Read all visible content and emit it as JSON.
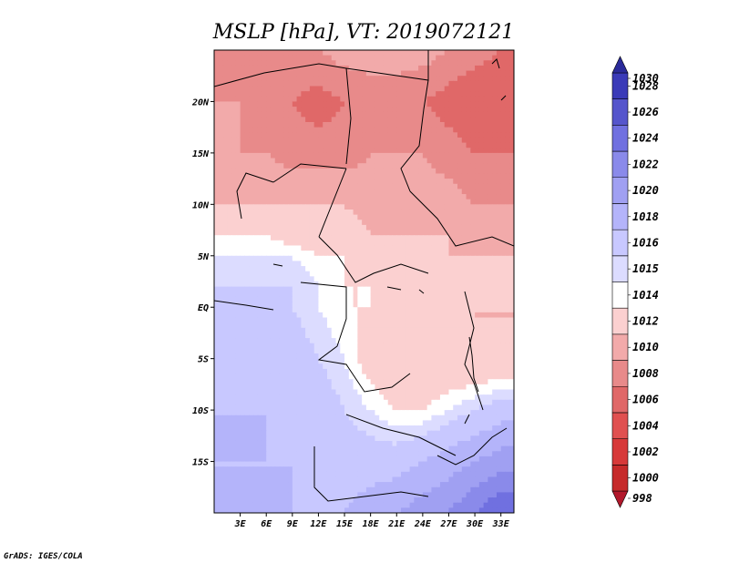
{
  "chart_data": {
    "type": "heatmap",
    "title": "MSLP [hPa], VT: 2019072121",
    "x_tick_labels": [
      "3E",
      "6E",
      "9E",
      "12E",
      "15E",
      "18E",
      "21E",
      "24E",
      "27E",
      "30E",
      "33E"
    ],
    "x_ticks": [
      3,
      6,
      9,
      12,
      15,
      18,
      21,
      24,
      27,
      30,
      33
    ],
    "xlim": [
      0,
      34.5
    ],
    "y_tick_labels": [
      "20N",
      "15N",
      "10N",
      "5N",
      "EQ",
      "5S",
      "10S",
      "15S"
    ],
    "y_ticks": [
      20,
      15,
      10,
      5,
      0,
      -5,
      -10,
      -15
    ],
    "ylim": [
      -20,
      25
    ],
    "colorbar": {
      "labels": [
        "998",
        "1000",
        "1002",
        "1004",
        "1006",
        "1008",
        "1010",
        "1012",
        "1014",
        "1015",
        "1016",
        "1018",
        "1020",
        "1022",
        "1024",
        "1026",
        "1028",
        "1030"
      ],
      "colors": [
        "#b2182b",
        "#c62a2a",
        "#d73939",
        "#e05050",
        "#e06868",
        "#e88a8a",
        "#f2aaaa",
        "#fbd0d0",
        "#ffffff",
        "#dcdcff",
        "#c8c8ff",
        "#b4b4fa",
        "#a0a0f2",
        "#8a8aea",
        "#7070e0",
        "#5555cc",
        "#3a3ab8",
        "#2a2a9a"
      ]
    },
    "pressure_field": [
      {
        "lat": 25,
        "values": [
          1009,
          1009,
          1009,
          1010,
          1010,
          1011,
          1011,
          1011,
          1011,
          1010,
          1009,
          1008
        ]
      },
      {
        "lat": 20,
        "values": [
          1010,
          1010,
          1009,
          1008,
          1007,
          1008,
          1009,
          1009,
          1008,
          1007,
          1006,
          1006
        ]
      },
      {
        "lat": 15,
        "values": [
          1011,
          1010,
          1010,
          1009,
          1009,
          1009,
          1010,
          1010,
          1010,
          1009,
          1008,
          1008
        ]
      },
      {
        "lat": 10,
        "values": [
          1012,
          1012,
          1012,
          1012,
          1012,
          1012,
          1011,
          1011,
          1011,
          1011,
          1010,
          1010
        ]
      },
      {
        "lat": 7,
        "values": [
          1014,
          1014,
          1014,
          1013,
          1013,
          1013,
          1012,
          1012,
          1012,
          1012,
          1011,
          1011
        ]
      },
      {
        "lat": 5,
        "values": [
          1015,
          1015,
          1015,
          1015,
          1014,
          1014,
          1013,
          1013,
          1013,
          1012,
          1012,
          1012
        ]
      },
      {
        "lat": 2,
        "values": [
          1016,
          1016,
          1016,
          1016,
          1015,
          1014,
          1014,
          1014,
          1013,
          1013,
          1012,
          1012
        ]
      },
      {
        "lat": 0,
        "values": [
          1017,
          1017,
          1017,
          1016,
          1015,
          1014,
          1014,
          1013,
          1013,
          1013,
          1012,
          1012
        ]
      },
      {
        "lat": -5,
        "values": [
          1017,
          1017,
          1017,
          1017,
          1016,
          1015,
          1013,
          1012,
          1012,
          1012,
          1012,
          1012
        ]
      },
      {
        "lat": -10,
        "values": [
          1018,
          1018,
          1018,
          1017,
          1017,
          1016,
          1015,
          1014,
          1014,
          1015,
          1016,
          1017
        ]
      },
      {
        "lat": -15,
        "values": [
          1018,
          1018,
          1018,
          1018,
          1017,
          1017,
          1017,
          1017,
          1018,
          1019,
          1020,
          1021
        ]
      },
      {
        "lat": -20,
        "values": [
          1018,
          1018,
          1018,
          1018,
          1018,
          1018,
          1019,
          1020,
          1021,
          1022,
          1024,
          1026
        ]
      }
    ],
    "field_lons": [
      0,
      3,
      6,
      9,
      12,
      15,
      18,
      21,
      24,
      27,
      30,
      33
    ]
  },
  "credit": "GrADS: IGES/COLA"
}
